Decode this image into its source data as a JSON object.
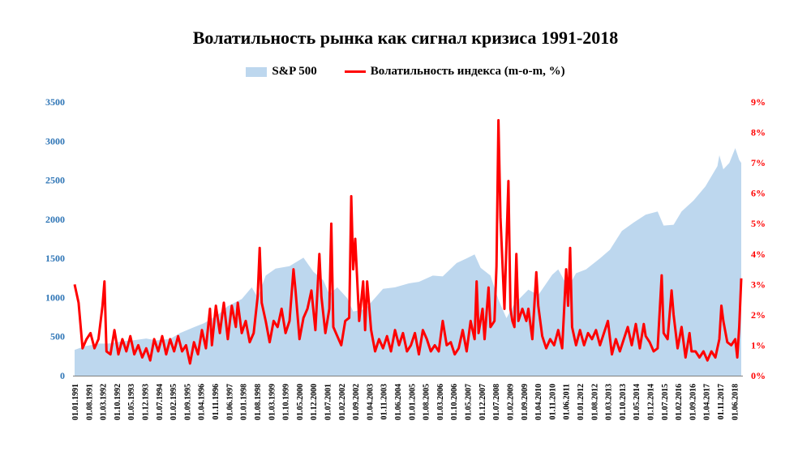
{
  "chart_data": {
    "type": "area+line",
    "title": "Волатильность рынка как сигнал кризиса 1991-2018",
    "legend_position": "top-center",
    "grid": false,
    "colors": {
      "sp500": "#bdd7ee",
      "volatility": "#ff0000",
      "left_axis_text": "#2e75b6",
      "right_axis_text": "#ff0000"
    },
    "left_axis": {
      "ticks": [
        "0",
        "500",
        "1000",
        "1500",
        "2000",
        "2500",
        "3000",
        "3500"
      ],
      "ylim": [
        0,
        3500
      ]
    },
    "right_axis": {
      "ticks": [
        "0%",
        "1%",
        "2%",
        "3%",
        "4%",
        "5%",
        "6%",
        "7%",
        "8%",
        "9%"
      ],
      "ylim": [
        0,
        9
      ]
    },
    "x_ticks": [
      "01.01.1991",
      "01.08.1991",
      "01.03.1992",
      "01.10.1992",
      "01.05.1993",
      "01.12.1993",
      "01.07.1994",
      "01.02.1995",
      "01.09.1995",
      "01.04.1996",
      "01.11.1996",
      "01.06.1997",
      "01.01.1998",
      "01.08.1998",
      "01.03.1999",
      "01.10.1999",
      "01.05.2000",
      "01.12.2000",
      "01.07.2001",
      "01.02.2002",
      "01.09.2002",
      "01.04.2003",
      "01.11.2003",
      "01.06.2004",
      "01.01.2005",
      "01.08.2005",
      "01.03.2006",
      "01.10.2006",
      "01.05.2007",
      "01.12.2007",
      "01.07.2008",
      "01.02.2009",
      "01.09.2009",
      "01.04.2010",
      "01.11.2010",
      "01.06.2011",
      "01.01.2012",
      "01.08.2012",
      "01.03.2013",
      "01.10.2013",
      "01.05.2014",
      "01.12.2014",
      "01.07.2015",
      "01.02.2016",
      "01.09.2016",
      "01.04.2017",
      "01.11.2017",
      "01.06.2018"
    ],
    "x_range": [
      "1991-01",
      "2018-12"
    ],
    "series": [
      {
        "name": "S&P 500",
        "type": "area",
        "points": [
          [
            "1991-01",
            330
          ],
          [
            "1991-06",
            375
          ],
          [
            "1992-01",
            410
          ],
          [
            "1992-06",
            410
          ],
          [
            "1993-01",
            440
          ],
          [
            "1993-06",
            450
          ],
          [
            "1994-01",
            475
          ],
          [
            "1994-06",
            450
          ],
          [
            "1995-01",
            470
          ],
          [
            "1995-06",
            545
          ],
          [
            "1996-01",
            620
          ],
          [
            "1996-06",
            670
          ],
          [
            "1997-01",
            780
          ],
          [
            "1997-06",
            890
          ],
          [
            "1998-01",
            980
          ],
          [
            "1998-06",
            1130
          ],
          [
            "1998-09",
            1000
          ],
          [
            "1999-01",
            1280
          ],
          [
            "1999-06",
            1370
          ],
          [
            "2000-01",
            1400
          ],
          [
            "2000-08",
            1510
          ],
          [
            "2001-01",
            1330
          ],
          [
            "2001-06",
            1220
          ],
          [
            "2001-09",
            1040
          ],
          [
            "2002-01",
            1130
          ],
          [
            "2002-06",
            990
          ],
          [
            "2002-09",
            820
          ],
          [
            "2003-03",
            850
          ],
          [
            "2003-12",
            1110
          ],
          [
            "2004-06",
            1130
          ],
          [
            "2005-01",
            1180
          ],
          [
            "2005-06",
            1200
          ],
          [
            "2006-01",
            1280
          ],
          [
            "2006-06",
            1270
          ],
          [
            "2007-01",
            1440
          ],
          [
            "2007-06",
            1500
          ],
          [
            "2007-10",
            1550
          ],
          [
            "2008-01",
            1380
          ],
          [
            "2008-06",
            1280
          ],
          [
            "2008-10",
            970
          ],
          [
            "2009-02",
            735
          ],
          [
            "2009-06",
            920
          ],
          [
            "2010-01",
            1100
          ],
          [
            "2010-06",
            1030
          ],
          [
            "2011-01",
            1290
          ],
          [
            "2011-04",
            1360
          ],
          [
            "2011-09",
            1130
          ],
          [
            "2012-01",
            1310
          ],
          [
            "2012-06",
            1360
          ],
          [
            "2013-01",
            1500
          ],
          [
            "2013-06",
            1610
          ],
          [
            "2013-12",
            1850
          ],
          [
            "2014-06",
            1960
          ],
          [
            "2014-12",
            2060
          ],
          [
            "2015-06",
            2100
          ],
          [
            "2015-09",
            1920
          ],
          [
            "2016-02",
            1930
          ],
          [
            "2016-06",
            2100
          ],
          [
            "2016-12",
            2240
          ],
          [
            "2017-06",
            2420
          ],
          [
            "2017-12",
            2680
          ],
          [
            "2018-01",
            2820
          ],
          [
            "2018-03",
            2640
          ],
          [
            "2018-06",
            2720
          ],
          [
            "2018-09",
            2910
          ],
          [
            "2018-11",
            2760
          ],
          [
            "2018-12",
            2720
          ]
        ]
      },
      {
        "name": "Волатильность индекса (m-o-m, %)",
        "type": "line",
        "points": [
          [
            "1991-01",
            3.0
          ],
          [
            "1991-03",
            2.4
          ],
          [
            "1991-05",
            0.9
          ],
          [
            "1991-07",
            1.2
          ],
          [
            "1991-09",
            1.4
          ],
          [
            "1991-11",
            0.9
          ],
          [
            "1992-01",
            1.2
          ],
          [
            "1992-03",
            2.3
          ],
          [
            "1992-04",
            3.1
          ],
          [
            "1992-05",
            0.8
          ],
          [
            "1992-07",
            0.7
          ],
          [
            "1992-09",
            1.5
          ],
          [
            "1992-11",
            0.7
          ],
          [
            "1993-01",
            1.2
          ],
          [
            "1993-03",
            0.8
          ],
          [
            "1993-05",
            1.3
          ],
          [
            "1993-07",
            0.7
          ],
          [
            "1993-09",
            1.0
          ],
          [
            "1993-11",
            0.6
          ],
          [
            "1994-01",
            0.9
          ],
          [
            "1994-03",
            0.5
          ],
          [
            "1994-05",
            1.2
          ],
          [
            "1994-07",
            0.8
          ],
          [
            "1994-09",
            1.3
          ],
          [
            "1994-11",
            0.7
          ],
          [
            "1995-01",
            1.2
          ],
          [
            "1995-03",
            0.8
          ],
          [
            "1995-05",
            1.3
          ],
          [
            "1995-07",
            0.8
          ],
          [
            "1995-09",
            1.0
          ],
          [
            "1995-11",
            0.4
          ],
          [
            "1996-01",
            1.1
          ],
          [
            "1996-03",
            0.7
          ],
          [
            "1996-05",
            1.5
          ],
          [
            "1996-07",
            0.9
          ],
          [
            "1996-09",
            2.2
          ],
          [
            "1996-10",
            1.0
          ],
          [
            "1996-12",
            2.3
          ],
          [
            "1997-02",
            1.4
          ],
          [
            "1997-04",
            2.4
          ],
          [
            "1997-06",
            1.2
          ],
          [
            "1997-08",
            2.3
          ],
          [
            "1997-10",
            1.6
          ],
          [
            "1997-11",
            2.4
          ],
          [
            "1998-01",
            1.4
          ],
          [
            "1998-03",
            1.8
          ],
          [
            "1998-05",
            1.1
          ],
          [
            "1998-07",
            1.4
          ],
          [
            "1998-09",
            2.6
          ],
          [
            "1998-10",
            4.2
          ],
          [
            "1998-11",
            2.4
          ],
          [
            "1999-01",
            1.8
          ],
          [
            "1999-03",
            1.1
          ],
          [
            "1999-05",
            1.8
          ],
          [
            "1999-07",
            1.6
          ],
          [
            "1999-09",
            2.2
          ],
          [
            "1999-11",
            1.4
          ],
          [
            "2000-01",
            1.8
          ],
          [
            "2000-03",
            3.5
          ],
          [
            "2000-04",
            2.8
          ],
          [
            "2000-06",
            1.2
          ],
          [
            "2000-08",
            1.9
          ],
          [
            "2000-10",
            2.2
          ],
          [
            "2000-12",
            2.8
          ],
          [
            "2001-02",
            1.5
          ],
          [
            "2001-04",
            4.0
          ],
          [
            "2001-05",
            2.6
          ],
          [
            "2001-07",
            1.4
          ],
          [
            "2001-09",
            2.2
          ],
          [
            "2001-10",
            5.0
          ],
          [
            "2001-11",
            1.6
          ],
          [
            "2002-01",
            1.3
          ],
          [
            "2002-03",
            1.0
          ],
          [
            "2002-05",
            1.8
          ],
          [
            "2002-07",
            1.9
          ],
          [
            "2002-08",
            5.9
          ],
          [
            "2002-09",
            3.5
          ],
          [
            "2002-10",
            4.5
          ],
          [
            "2002-12",
            1.8
          ],
          [
            "2003-02",
            3.1
          ],
          [
            "2003-03",
            1.5
          ],
          [
            "2003-04",
            3.1
          ],
          [
            "2003-06",
            1.5
          ],
          [
            "2003-08",
            0.8
          ],
          [
            "2003-10",
            1.2
          ],
          [
            "2003-12",
            0.9
          ],
          [
            "2004-02",
            1.3
          ],
          [
            "2004-04",
            0.8
          ],
          [
            "2004-06",
            1.5
          ],
          [
            "2004-08",
            1.0
          ],
          [
            "2004-10",
            1.4
          ],
          [
            "2004-12",
            0.8
          ],
          [
            "2005-02",
            1.0
          ],
          [
            "2005-04",
            1.4
          ],
          [
            "2005-06",
            0.7
          ],
          [
            "2005-08",
            1.5
          ],
          [
            "2005-10",
            1.2
          ],
          [
            "2005-12",
            0.8
          ],
          [
            "2006-02",
            1.0
          ],
          [
            "2006-04",
            0.8
          ],
          [
            "2006-06",
            1.8
          ],
          [
            "2006-08",
            1.0
          ],
          [
            "2006-10",
            1.1
          ],
          [
            "2006-12",
            0.7
          ],
          [
            "2007-02",
            0.9
          ],
          [
            "2007-04",
            1.5
          ],
          [
            "2007-06",
            0.8
          ],
          [
            "2007-08",
            1.8
          ],
          [
            "2007-10",
            1.2
          ],
          [
            "2007-11",
            3.1
          ],
          [
            "2007-12",
            1.4
          ],
          [
            "2008-02",
            2.2
          ],
          [
            "2008-03",
            1.2
          ],
          [
            "2008-05",
            2.9
          ],
          [
            "2008-06",
            1.6
          ],
          [
            "2008-08",
            1.8
          ],
          [
            "2008-09",
            3.6
          ],
          [
            "2008-10",
            8.4
          ],
          [
            "2008-11",
            5.2
          ],
          [
            "2009-01",
            2.2
          ],
          [
            "2009-03",
            6.4
          ],
          [
            "2009-04",
            2.2
          ],
          [
            "2009-05",
            1.8
          ],
          [
            "2009-06",
            1.6
          ],
          [
            "2009-07",
            4.0
          ],
          [
            "2009-08",
            1.8
          ],
          [
            "2009-10",
            2.2
          ],
          [
            "2009-12",
            1.8
          ],
          [
            "2010-01",
            2.2
          ],
          [
            "2010-03",
            1.2
          ],
          [
            "2010-05",
            3.4
          ],
          [
            "2010-06",
            2.3
          ],
          [
            "2010-08",
            1.3
          ],
          [
            "2010-10",
            0.9
          ],
          [
            "2010-12",
            1.2
          ],
          [
            "2011-02",
            1.0
          ],
          [
            "2011-04",
            1.5
          ],
          [
            "2011-06",
            0.9
          ],
          [
            "2011-08",
            3.5
          ],
          [
            "2011-09",
            2.3
          ],
          [
            "2011-10",
            4.2
          ],
          [
            "2011-11",
            1.6
          ],
          [
            "2012-01",
            1.0
          ],
          [
            "2012-03",
            1.5
          ],
          [
            "2012-05",
            1.0
          ],
          [
            "2012-07",
            1.4
          ],
          [
            "2012-09",
            1.2
          ],
          [
            "2012-11",
            1.5
          ],
          [
            "2013-01",
            1.0
          ],
          [
            "2013-03",
            1.4
          ],
          [
            "2013-05",
            1.8
          ],
          [
            "2013-07",
            0.7
          ],
          [
            "2013-09",
            1.2
          ],
          [
            "2013-11",
            0.8
          ],
          [
            "2014-01",
            1.2
          ],
          [
            "2014-03",
            1.6
          ],
          [
            "2014-05",
            1.0
          ],
          [
            "2014-07",
            1.7
          ],
          [
            "2014-09",
            0.9
          ],
          [
            "2014-11",
            1.7
          ],
          [
            "2014-12",
            1.3
          ],
          [
            "2015-02",
            1.1
          ],
          [
            "2015-04",
            0.8
          ],
          [
            "2015-06",
            0.9
          ],
          [
            "2015-08",
            3.3
          ],
          [
            "2015-09",
            1.4
          ],
          [
            "2015-11",
            1.2
          ],
          [
            "2016-01",
            2.8
          ],
          [
            "2016-02",
            2.0
          ],
          [
            "2016-04",
            0.9
          ],
          [
            "2016-06",
            1.6
          ],
          [
            "2016-08",
            0.6
          ],
          [
            "2016-10",
            1.4
          ],
          [
            "2016-11",
            0.8
          ],
          [
            "2017-01",
            0.8
          ],
          [
            "2017-03",
            0.6
          ],
          [
            "2017-05",
            0.8
          ],
          [
            "2017-07",
            0.5
          ],
          [
            "2017-09",
            0.8
          ],
          [
            "2017-11",
            0.6
          ],
          [
            "2018-01",
            1.2
          ],
          [
            "2018-02",
            2.3
          ],
          [
            "2018-03",
            1.8
          ],
          [
            "2018-05",
            1.1
          ],
          [
            "2018-07",
            1.0
          ],
          [
            "2018-09",
            1.2
          ],
          [
            "2018-10",
            0.6
          ],
          [
            "2018-11",
            1.6
          ],
          [
            "2018-12",
            3.2
          ]
        ]
      }
    ]
  }
}
